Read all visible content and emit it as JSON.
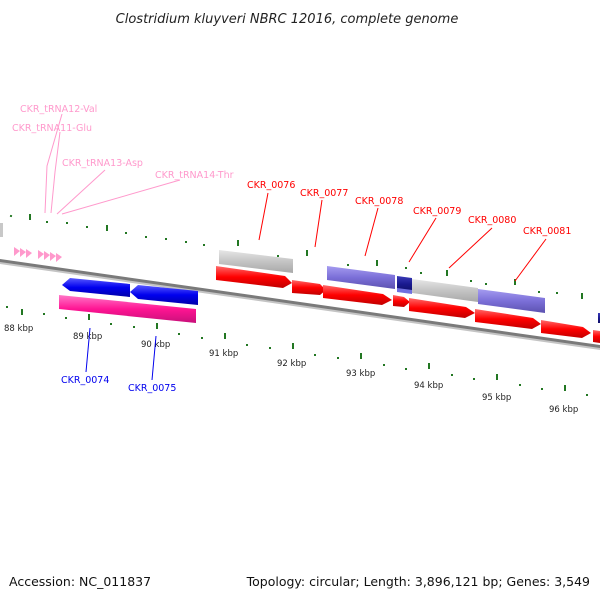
{
  "title": "Clostridium kluyveri NBRC 12016, complete genome",
  "accession_text": "Accession: NC_011837",
  "summary_text": "Topology: circular; Length: 3,896,121 bp; Genes: 3,549",
  "colors": {
    "forward_cds": "#ff0000",
    "reverse_cds": "#0000ee",
    "trna": "#ff99cc",
    "tick": "#227722",
    "backbone": "#888888"
  },
  "tick_labels": [
    "88 kbp",
    "89 kbp",
    "90 kbp",
    "91 kbp",
    "92 kbp",
    "93 kbp",
    "94 kbp",
    "95 kbp",
    "96 kbp"
  ],
  "gene_labels_top": {
    "trna": [
      "CKR_tRNA12-Val",
      "CKR_tRNA11-Glu",
      "CKR_tRNA13-Asp",
      "CKR_tRNA14-Thr"
    ],
    "cds": [
      "CKR_0076",
      "CKR_0077",
      "CKR_0078",
      "CKR_0079",
      "CKR_0080",
      "CKR_0081"
    ]
  },
  "gene_labels_bottom": [
    "CKR_0074",
    "CKR_0075"
  ]
}
